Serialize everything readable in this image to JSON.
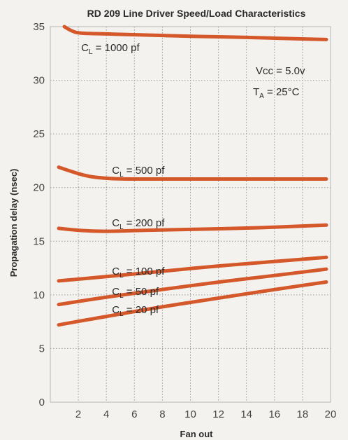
{
  "chart_data": {
    "type": "line",
    "title": "RD 209 Line Driver Speed/Load Characteristics",
    "xlabel": "Fan out",
    "ylabel": "Propagation delay (nsec)",
    "xlim": [
      0,
      20
    ],
    "ylim": [
      0,
      35
    ],
    "x_ticks": [
      2,
      4,
      6,
      8,
      10,
      12,
      14,
      16,
      18,
      20
    ],
    "y_ticks": [
      0,
      5,
      10,
      15,
      20,
      25,
      30,
      35
    ],
    "grid": true,
    "line_color": "#d4582a",
    "annotation": {
      "vcc": "Vcc = 5.0v",
      "ta_prefix": "T",
      "ta_sub": "A",
      "ta_suffix": " = 25°C"
    },
    "series": [
      {
        "name": "C_L = 1000 pf",
        "label_prefix": "C",
        "label_sub": "L",
        "label_suffix": " = 1000 pf",
        "x": [
          1.0,
          1.5,
          2.0,
          3,
          6,
          10,
          14,
          18,
          19.7
        ],
        "y": [
          35.0,
          34.6,
          34.4,
          34.35,
          34.25,
          34.1,
          34.0,
          33.85,
          33.8
        ]
      },
      {
        "name": "C_L = 500 pf",
        "label_prefix": "C",
        "label_sub": "L",
        "label_suffix": " = 500 pf",
        "x": [
          0.6,
          1.5,
          2.5,
          3.5,
          5,
          8,
          12,
          16,
          19.7
        ],
        "y": [
          21.9,
          21.5,
          21.1,
          20.9,
          20.8,
          20.8,
          20.8,
          20.8,
          20.8
        ]
      },
      {
        "name": "C_L = 200 pf",
        "label_prefix": "C",
        "label_sub": "L",
        "label_suffix": " = 200 pf",
        "x": [
          0.6,
          2,
          4,
          6,
          8,
          12,
          16,
          19.7
        ],
        "y": [
          16.2,
          16.0,
          15.9,
          16.0,
          16.05,
          16.15,
          16.3,
          16.5
        ]
      },
      {
        "name": "C_L = 100 pf",
        "label_prefix": "C",
        "label_sub": "L",
        "label_suffix": " = 100 pf",
        "x": [
          0.6,
          4,
          8,
          12,
          16,
          19.7
        ],
        "y": [
          11.3,
          11.7,
          12.2,
          12.7,
          13.1,
          13.5
        ]
      },
      {
        "name": "C_L = 50 pf",
        "label_prefix": "C",
        "label_sub": "L",
        "label_suffix": " = 50 pf",
        "x": [
          0.6,
          4,
          8,
          12,
          16,
          19.7
        ],
        "y": [
          9.1,
          9.8,
          10.5,
          11.2,
          11.8,
          12.4
        ]
      },
      {
        "name": "C_L = 20 pf",
        "label_prefix": "C",
        "label_sub": "L",
        "label_suffix": " = 20 pf",
        "x": [
          0.6,
          4,
          8,
          12,
          16,
          19.7
        ],
        "y": [
          7.2,
          8.0,
          8.9,
          9.7,
          10.5,
          11.2
        ]
      }
    ]
  }
}
